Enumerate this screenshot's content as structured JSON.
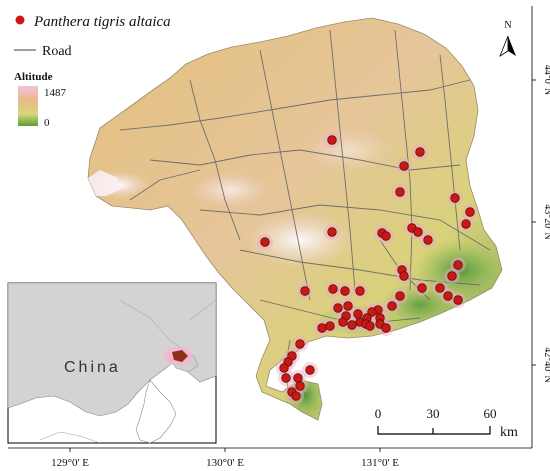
{
  "legend": {
    "species_label": "Panthera tigris altaica",
    "road_label": "Road",
    "altitude_title": "Altitude",
    "altitude_max": "1487",
    "altitude_min": "0"
  },
  "north_arrow": {
    "label": "N"
  },
  "scale_bar": {
    "ticks": [
      "0",
      "30",
      "60"
    ],
    "unit": "km"
  },
  "axes": {
    "longitude_ticks": [
      "129°0' E",
      "130°0' E",
      "131°0' E"
    ],
    "latitude_ticks": [
      "44°0' N",
      "43°20' N",
      "42°40' N"
    ]
  },
  "inset": {
    "country_label": "China"
  },
  "colors": {
    "altitude_high": "#f4c6e0",
    "altitude_mid": "#e8c48a",
    "altitude_low": "#4f9a3a",
    "tiger_point": "#d01515",
    "road": "#666666"
  }
}
